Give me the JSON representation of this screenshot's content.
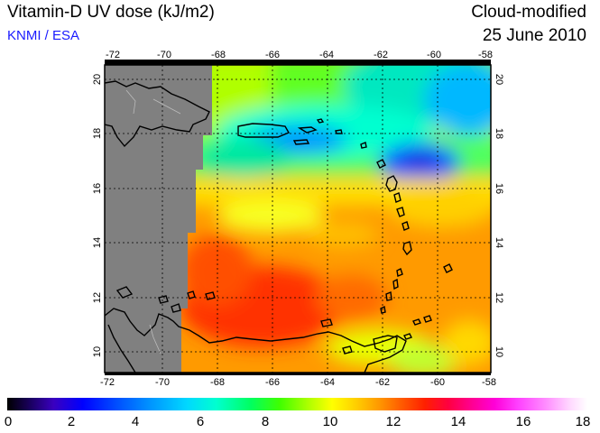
{
  "header": {
    "title": "Vitamin-D UV dose (kJ/m2)",
    "source": "KNMI / ESA",
    "product": "Cloud-modified",
    "date": "25 June 2010"
  },
  "map": {
    "lon_range": [
      -72,
      -58
    ],
    "lat_range": [
      9.5,
      20.8
    ],
    "lon_ticks": [
      "-72",
      "-70",
      "-68",
      "-66",
      "-64",
      "-62",
      "-60",
      "-58"
    ],
    "lat_ticks": [
      "10",
      "12",
      "14",
      "16",
      "18",
      "20"
    ],
    "land_mask_color": "#808080",
    "grid": "dotted"
  },
  "colorbar": {
    "min": 0,
    "max": 18,
    "labels": [
      "0",
      "2",
      "4",
      "6",
      "8",
      "10",
      "12",
      "14",
      "16",
      "18"
    ]
  }
}
